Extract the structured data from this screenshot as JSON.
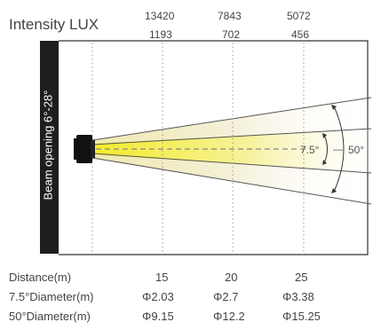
{
  "title": "Intensity LUX",
  "lux_top": [
    "13420",
    "7843",
    "5072"
  ],
  "lux_bottom": [
    "1193",
    "702",
    "456"
  ],
  "side_label": "Beam opening 6°-28°",
  "angle_small": "7.5°",
  "angle_large": "50°",
  "distance_label": "Distance(m)",
  "distances": [
    "15",
    "20",
    "25"
  ],
  "d75_label": "7.5°Diameter(m)",
  "d75_values": [
    "Φ2.03",
    "Φ2.7",
    "Φ3.38"
  ],
  "d50_label": "50°Diameter(m)",
  "d50_values": [
    "Φ9.15",
    "Φ12.2",
    "Φ15.25"
  ],
  "colors": {
    "beam_core": "#f2ea3c",
    "beam_outer": "#ece6c8",
    "bar": "#1e1e1e"
  }
}
